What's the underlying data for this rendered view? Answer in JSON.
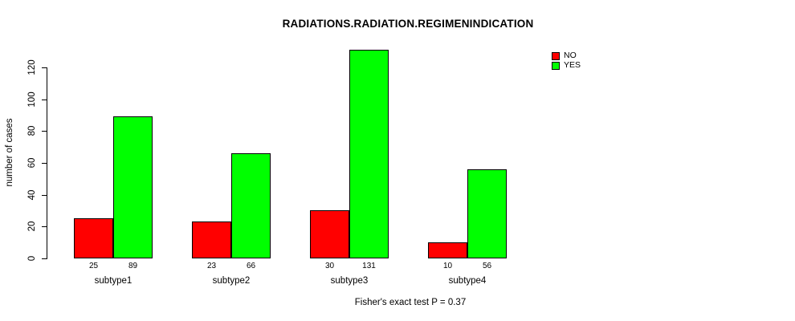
{
  "chart_data": {
    "type": "bar",
    "title": "RADIATIONS.RADIATION.REGIMENINDICATION",
    "ylabel": "number of cases",
    "xlabel": "",
    "categories": [
      "subtype1",
      "subtype2",
      "subtype3",
      "subtype4"
    ],
    "series": [
      {
        "name": "NO",
        "color": "#FF0000",
        "values": [
          25,
          23,
          30,
          10
        ]
      },
      {
        "name": "YES",
        "color": "#00FF00",
        "values": [
          89,
          66,
          131,
          56
        ]
      }
    ],
    "yticks": [
      0,
      20,
      40,
      60,
      80,
      100,
      120
    ],
    "ylim": [
      0,
      131
    ],
    "grid": false,
    "legend_position": "top-right",
    "bar_value_labels": true,
    "footnote": "Fisher's exact test P = 0.37"
  }
}
